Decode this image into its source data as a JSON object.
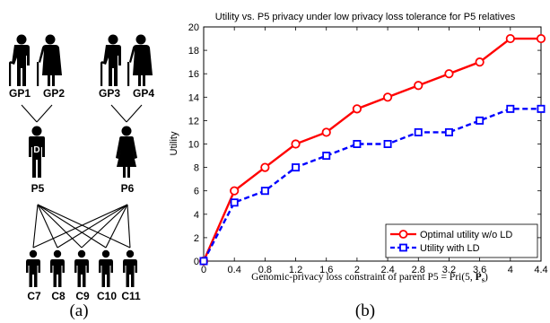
{
  "pedigree": {
    "grandparents": [
      {
        "id": "GP1",
        "gender": "male"
      },
      {
        "id": "GP2",
        "gender": "female"
      },
      {
        "id": "GP3",
        "gender": "male"
      },
      {
        "id": "GP4",
        "gender": "female"
      }
    ],
    "parents": [
      {
        "id": "P5",
        "gender": "male",
        "badge": "D"
      },
      {
        "id": "P6",
        "gender": "female"
      }
    ],
    "children": [
      {
        "id": "C7"
      },
      {
        "id": "C8"
      },
      {
        "id": "C9"
      },
      {
        "id": "C10"
      },
      {
        "id": "C11"
      }
    ],
    "panel_label": "(a)"
  },
  "chart_data": {
    "type": "line",
    "title": "Utility vs. P5 privacy under low privacy loss tolerance for P5 relatives",
    "xlabel": "Genomic-privacy loss constraint of parent P5 = Pri(5, Ps)",
    "xlabel_plain": "Genomic-privacy loss constraint of parent P5 = ",
    "xlabel_math": "Pri(5, ",
    "xlabel_math_bold": "P",
    "xlabel_math_sub": "s",
    "xlabel_math_end": ")",
    "ylabel": "Utility",
    "x": [
      0,
      0.4,
      0.8,
      1.2,
      1.6,
      2,
      2.4,
      2.8,
      3.2,
      3.6,
      4,
      4.4
    ],
    "xticks": [
      "0",
      "0.4",
      "0.8",
      "1.2",
      "1.6",
      "2",
      "2.4",
      "2.8",
      "3.2",
      "3.6",
      "4",
      "4.4"
    ],
    "yticks": [
      "0",
      "2",
      "4",
      "6",
      "8",
      "10",
      "12",
      "14",
      "16",
      "18",
      "20"
    ],
    "xlim": [
      0,
      4.4
    ],
    "ylim": [
      0,
      20
    ],
    "series": [
      {
        "name": "Optimal utility w/o LD",
        "color": "#ff0000",
        "marker": "circle",
        "style": "solid",
        "values": [
          0,
          6,
          8,
          10,
          11,
          13,
          14,
          15,
          16,
          17,
          19,
          19
        ]
      },
      {
        "name": "Utility with LD",
        "color": "#0000ff",
        "marker": "square",
        "style": "dashed",
        "values": [
          0,
          5,
          6,
          8,
          9,
          10,
          10,
          11,
          11,
          12,
          13,
          13
        ]
      }
    ],
    "legend_position": "bottom-right",
    "grid": false,
    "panel_label": "(b)"
  }
}
